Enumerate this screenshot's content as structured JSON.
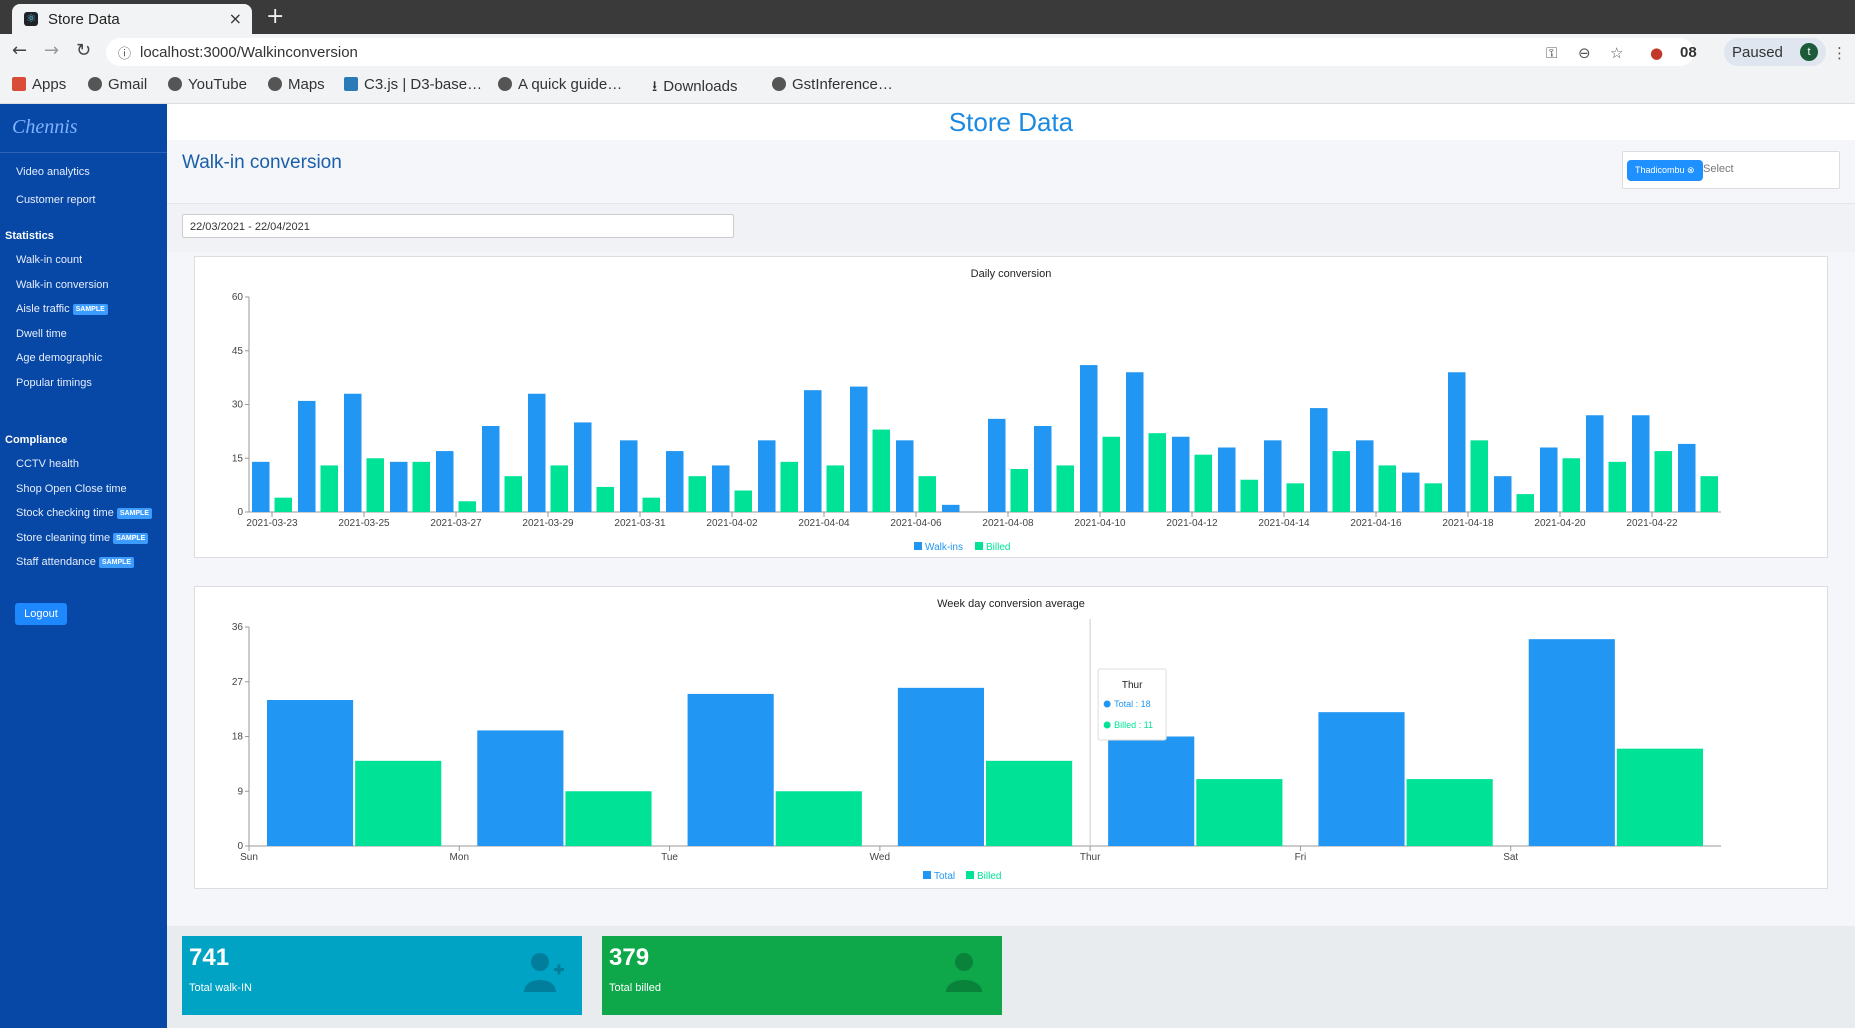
{
  "browser": {
    "tab_title": "Store Data",
    "url": "localhost:3000/Walkinconversion",
    "profile_label": "Paused",
    "profile_initial": "t",
    "extension_badge": "08",
    "bookmarks": [
      "Apps",
      "Gmail",
      "YouTube",
      "Maps",
      "C3.js | D3-base…",
      "A quick guide…",
      "Downloads",
      "GstInference…"
    ]
  },
  "sidebar": {
    "logo": "Chennis",
    "items_top": [
      "Video analytics",
      "Customer report"
    ],
    "statistics_heading": "Statistics",
    "statistics_items": [
      {
        "label": "Walk-in count",
        "badge": ""
      },
      {
        "label": "Walk-in conversion",
        "badge": ""
      },
      {
        "label": "Aisle traffic",
        "badge": "SAMPLE"
      },
      {
        "label": "Dwell time",
        "badge": ""
      },
      {
        "label": "Age demographic",
        "badge": ""
      },
      {
        "label": "Popular timings",
        "badge": ""
      }
    ],
    "compliance_heading": "Compliance",
    "compliance_items": [
      {
        "label": "CCTV health",
        "badge": ""
      },
      {
        "label": "Shop Open Close time",
        "badge": ""
      },
      {
        "label": "Stock checking time",
        "badge": "SAMPLE"
      },
      {
        "label": "Store cleaning time",
        "badge": "SAMPLE"
      },
      {
        "label": "Staff attendance",
        "badge": "SAMPLE"
      }
    ],
    "logout": "Logout"
  },
  "header": {
    "store_title": "Store Data",
    "page_title": "Walk-in conversion",
    "store_chip": "Thadicombu ⊗",
    "select_placeholder": "Select",
    "date_range": "22/03/2021 - 22/04/2021"
  },
  "colors": {
    "walkins": "#2196f3",
    "billed": "#00e396",
    "sidebar": "#0747a6"
  },
  "chart_data": [
    {
      "type": "bar",
      "title": "Daily conversion",
      "categories": [
        "2021-03-23",
        "2021-03-24",
        "2021-03-25",
        "2021-03-26",
        "2021-03-27",
        "2021-03-28",
        "2021-03-29",
        "2021-03-30",
        "2021-03-31",
        "2021-04-01",
        "2021-04-02",
        "2021-04-03",
        "2021-04-04",
        "2021-04-05",
        "2021-04-06",
        "2021-04-07",
        "2021-04-08",
        "2021-04-09",
        "2021-04-10",
        "2021-04-11",
        "2021-04-12",
        "2021-04-13",
        "2021-04-14",
        "2021-04-15",
        "2021-04-16",
        "2021-04-17",
        "2021-04-18",
        "2021-04-19",
        "2021-04-20",
        "2021-04-21",
        "2021-04-22",
        "2021-04-23"
      ],
      "tick_labels": [
        "2021-03-23",
        "2021-03-25",
        "2021-03-27",
        "2021-03-29",
        "2021-03-31",
        "2021-04-02",
        "2021-04-04",
        "2021-04-06",
        "2021-04-08",
        "2021-04-10",
        "2021-04-12",
        "2021-04-14",
        "2021-04-16",
        "2021-04-18",
        "2021-04-20",
        "2021-04-22"
      ],
      "series": [
        {
          "name": "Walk-ins",
          "values": [
            14,
            31,
            33,
            14,
            17,
            24,
            33,
            25,
            20,
            17,
            13,
            20,
            34,
            35,
            20,
            2,
            26,
            24,
            41,
            39,
            21,
            18,
            20,
            29,
            20,
            11,
            39,
            10,
            18,
            27,
            27,
            19
          ]
        },
        {
          "name": "Billed",
          "values": [
            4,
            13,
            15,
            14,
            3,
            10,
            13,
            7,
            4,
            10,
            6,
            14,
            13,
            23,
            10,
            0,
            12,
            13,
            21,
            22,
            16,
            9,
            8,
            17,
            13,
            8,
            20,
            5,
            15,
            14,
            17,
            10
          ]
        }
      ],
      "ylim": [
        0,
        60
      ],
      "yticks": [
        0,
        15,
        30,
        45,
        60
      ],
      "legend": "bottom"
    },
    {
      "type": "bar",
      "title": "Week day conversion average",
      "categories": [
        "Sun",
        "Mon",
        "Tue",
        "Wed",
        "Thur",
        "Fri",
        "Sat"
      ],
      "series": [
        {
          "name": "Total",
          "values": [
            24,
            19,
            25,
            26,
            18,
            22,
            34
          ]
        },
        {
          "name": "Billed",
          "values": [
            14,
            9,
            9,
            14,
            11,
            11,
            16
          ]
        }
      ],
      "ylim": [
        0,
        36
      ],
      "yticks": [
        0,
        9,
        18,
        27,
        36
      ],
      "legend": "bottom",
      "tooltip": {
        "category": "Thur",
        "total_label": "Total : 18",
        "billed_label": "Billed : 11"
      }
    }
  ],
  "stats": {
    "walkin_value": "741",
    "walkin_label": "Total walk-IN",
    "billed_value": "379",
    "billed_label": "Total billed"
  }
}
